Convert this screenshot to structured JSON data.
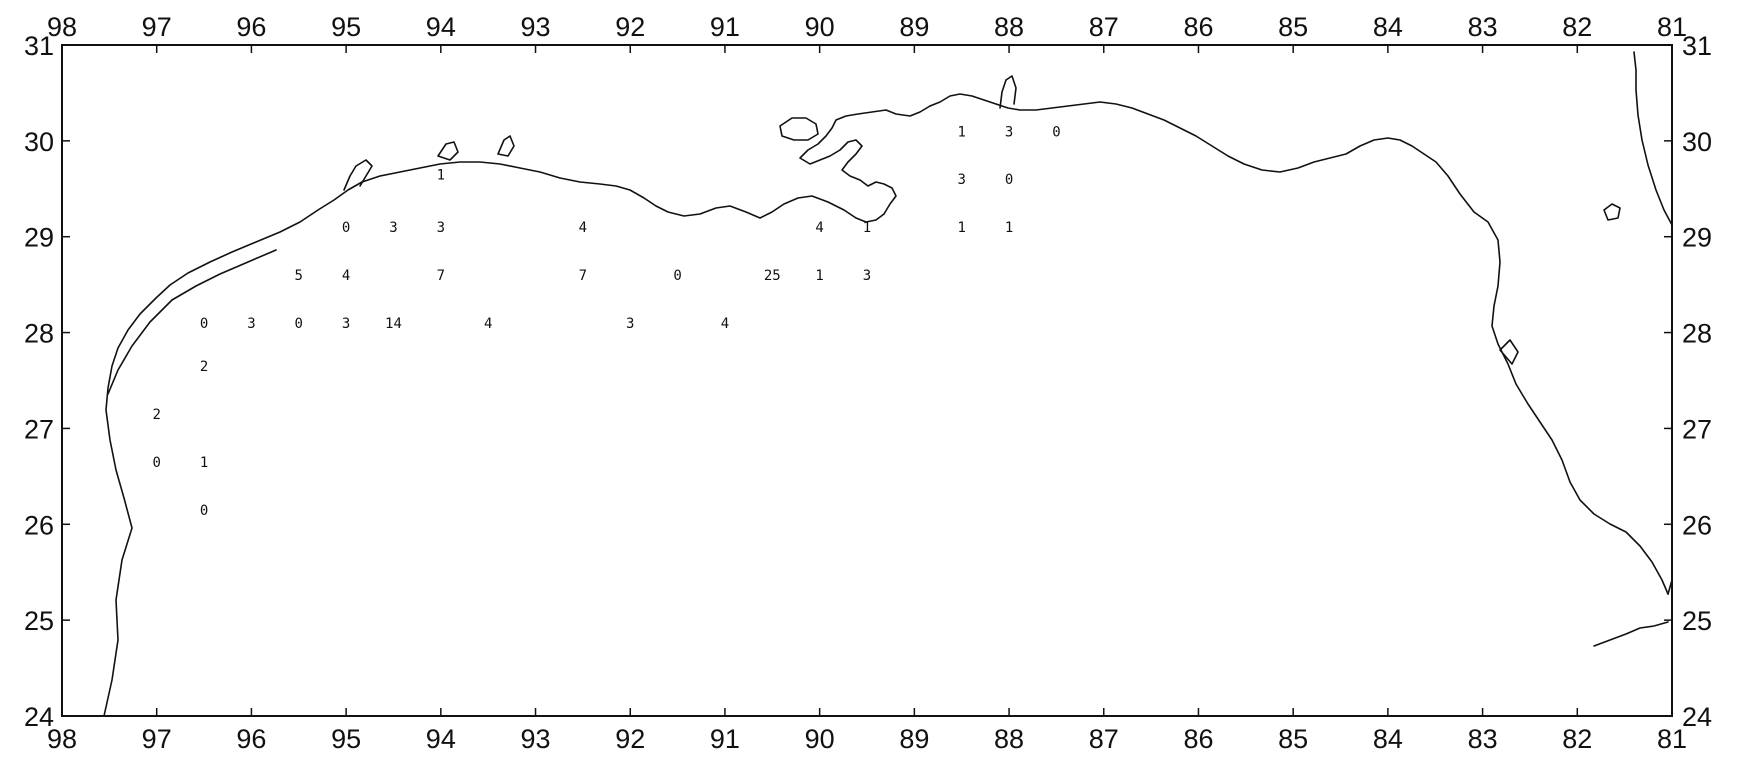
{
  "map": {
    "longitude_labels": [
      "98",
      "97",
      "96",
      "95",
      "94",
      "93",
      "92",
      "91",
      "90",
      "89",
      "88",
      "87",
      "86",
      "85",
      "84",
      "83",
      "82",
      "81"
    ],
    "latitude_labels": [
      "31",
      "30",
      "29",
      "28",
      "27",
      "26",
      "25",
      "24"
    ],
    "longitude_range": [
      98,
      81
    ],
    "latitude_range": [
      24,
      31
    ],
    "line_color": "#111111",
    "background": "#ffffff",
    "station_counts": [
      {
        "lon": 88.5,
        "lat": 30.1,
        "value": "1"
      },
      {
        "lon": 88.0,
        "lat": 30.1,
        "value": "3"
      },
      {
        "lon": 87.5,
        "lat": 30.1,
        "value": "0"
      },
      {
        "lon": 94.0,
        "lat": 29.65,
        "value": "1"
      },
      {
        "lon": 88.5,
        "lat": 29.6,
        "value": "3"
      },
      {
        "lon": 88.0,
        "lat": 29.6,
        "value": "0"
      },
      {
        "lon": 95.0,
        "lat": 29.1,
        "value": "0"
      },
      {
        "lon": 94.5,
        "lat": 29.1,
        "value": "3"
      },
      {
        "lon": 94.0,
        "lat": 29.1,
        "value": "3"
      },
      {
        "lon": 92.5,
        "lat": 29.1,
        "value": "4"
      },
      {
        "lon": 90.0,
        "lat": 29.1,
        "value": "4"
      },
      {
        "lon": 89.5,
        "lat": 29.1,
        "value": "1"
      },
      {
        "lon": 88.5,
        "lat": 29.1,
        "value": "1"
      },
      {
        "lon": 88.0,
        "lat": 29.1,
        "value": "1"
      },
      {
        "lon": 95.5,
        "lat": 28.6,
        "value": "5"
      },
      {
        "lon": 95.0,
        "lat": 28.6,
        "value": "4"
      },
      {
        "lon": 94.0,
        "lat": 28.6,
        "value": "7"
      },
      {
        "lon": 92.5,
        "lat": 28.6,
        "value": "7"
      },
      {
        "lon": 91.5,
        "lat": 28.6,
        "value": "0"
      },
      {
        "lon": 90.5,
        "lat": 28.6,
        "value": "25"
      },
      {
        "lon": 90.0,
        "lat": 28.6,
        "value": "1"
      },
      {
        "lon": 89.5,
        "lat": 28.6,
        "value": "3"
      },
      {
        "lon": 96.5,
        "lat": 28.1,
        "value": "0"
      },
      {
        "lon": 96.0,
        "lat": 28.1,
        "value": "3"
      },
      {
        "lon": 95.5,
        "lat": 28.1,
        "value": "0"
      },
      {
        "lon": 95.0,
        "lat": 28.1,
        "value": "3"
      },
      {
        "lon": 94.5,
        "lat": 28.1,
        "value": "14"
      },
      {
        "lon": 93.5,
        "lat": 28.1,
        "value": "4"
      },
      {
        "lon": 92.0,
        "lat": 28.1,
        "value": "3"
      },
      {
        "lon": 91.0,
        "lat": 28.1,
        "value": "4"
      },
      {
        "lon": 96.5,
        "lat": 27.65,
        "value": "2"
      },
      {
        "lon": 97.0,
        "lat": 27.15,
        "value": "2"
      },
      {
        "lon": 97.0,
        "lat": 26.65,
        "value": "0"
      },
      {
        "lon": 96.5,
        "lat": 26.65,
        "value": "1"
      },
      {
        "lon": 96.5,
        "lat": 26.15,
        "value": "0"
      }
    ]
  }
}
